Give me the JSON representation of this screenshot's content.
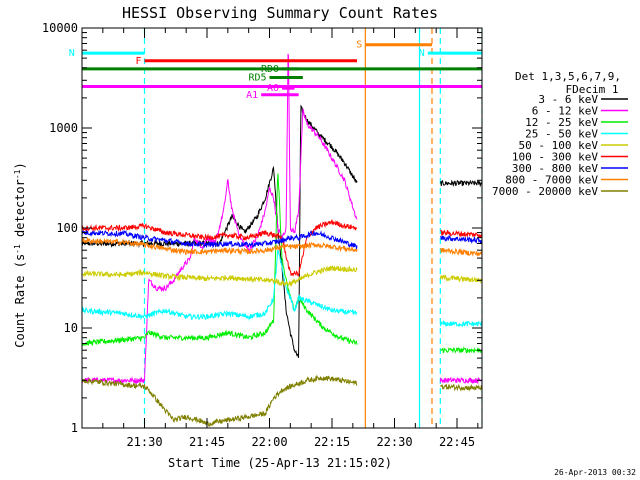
{
  "chart_data": {
    "type": "line",
    "title": "HESSI Observing Summary Count Rates",
    "xlabel": "Start Time (25-Apr-13 21:15:02)",
    "ylabel": "Count Rate (s⁻¹ detector⁻¹)",
    "ylabel_main": "Count Rate (s",
    "ylabel_mid": " detector",
    "ylabel_end": ")",
    "ylabel_sup": "-1",
    "yscale": "log",
    "ylim": [
      1,
      10000
    ],
    "xlim_minutes": [
      0,
      96
    ],
    "x_ticks": [
      {
        "label": "21:30",
        "m": 15
      },
      {
        "label": "21:45",
        "m": 30
      },
      {
        "label": "22:00",
        "m": 45
      },
      {
        "label": "22:15",
        "m": 60
      },
      {
        "label": "22:30",
        "m": 75
      },
      {
        "label": "22:45",
        "m": 90
      }
    ],
    "y_ticks": [
      {
        "label": "1",
        "v": 1
      },
      {
        "label": "10",
        "v": 10
      },
      {
        "label": "100",
        "v": 100
      },
      {
        "label": "1000",
        "v": 1000
      },
      {
        "label": "10000",
        "v": 10000
      }
    ],
    "legend": {
      "position": "right",
      "header": [
        "Det 1,3,5,6,7,9,",
        "FDecim 1"
      ],
      "entries": [
        {
          "label": "3 - 6 keV",
          "color": "#000000"
        },
        {
          "label": "6 - 12 keV",
          "color": "#ff00ff"
        },
        {
          "label": "12 - 25 keV",
          "color": "#00ee00"
        },
        {
          "label": "25 - 50 keV",
          "color": "#00ffff"
        },
        {
          "label": "50 - 100 keV",
          "color": "#cccc00"
        },
        {
          "label": "100 - 300 keV",
          "color": "#ff0000"
        },
        {
          "label": "300 - 800 keV",
          "color": "#0000ff"
        },
        {
          "label": "800 - 7000 keV",
          "color": "#ff8000"
        },
        {
          "label": "7000 - 20000 keV",
          "color": "#808000"
        }
      ]
    },
    "flags": [
      {
        "label": "N",
        "color": "#00ffff",
        "start_m": -1,
        "end_m": 15,
        "level": 5600
      },
      {
        "label": "N",
        "color": "#00ffff",
        "start_m": 83,
        "end_m": 96,
        "level": 5600
      },
      {
        "label": "S",
        "color": "#ff8000",
        "start_m": 68,
        "end_m": 84,
        "level": 6800
      },
      {
        "label": "F",
        "color": "#ff0000",
        "start_m": 15,
        "end_m": 66,
        "level": 4700
      },
      {
        "label": "",
        "color": "#008000",
        "start_m": 0,
        "end_m": 96,
        "level": 3900
      },
      {
        "label": "RD0",
        "color": "#008000",
        "start_m": 48,
        "end_m": 52,
        "level": 3900
      },
      {
        "label": "RD5",
        "color": "#008000",
        "start_m": 45,
        "end_m": 53,
        "level": 3200
      },
      {
        "label": "",
        "color": "#ff00ff",
        "start_m": 0,
        "end_m": 96,
        "level": 2600
      },
      {
        "label": "A1",
        "color": "#ff00ff",
        "start_m": 43,
        "end_m": 52,
        "level": 2150
      },
      {
        "label": "A0",
        "color": "#ff00ff",
        "start_m": 48,
        "end_m": 51,
        "level": 2500
      }
    ],
    "vlines": [
      {
        "m": 15,
        "color": "#00ffff",
        "style": "dashed"
      },
      {
        "m": 68,
        "color": "#ff8000",
        "style": "solid"
      },
      {
        "m": 81,
        "color": "#00ffff",
        "style": "solid"
      },
      {
        "m": 84,
        "color": "#ff8000",
        "style": "dashed"
      },
      {
        "m": 86,
        "color": "#00ffff",
        "style": "dashed"
      },
      {
        "m": 96,
        "color": "#00ffff",
        "style": "dashed"
      }
    ],
    "segments": [
      [
        0,
        66
      ],
      [
        86,
        96
      ]
    ],
    "series": [
      {
        "name": "3 - 6 keV",
        "color": "#000000",
        "points": [
          [
            33,
            70
          ],
          [
            36,
            130
          ],
          [
            39,
            90
          ],
          [
            42,
            130
          ],
          [
            44,
            200
          ],
          [
            46,
            400
          ],
          [
            47,
            100
          ],
          [
            48,
            40
          ],
          [
            49,
            15
          ],
          [
            50,
            9
          ],
          [
            51,
            6
          ],
          [
            52,
            5
          ],
          [
            52.5,
            1600
          ],
          [
            54,
            1200
          ],
          [
            57,
            850
          ],
          [
            60,
            650
          ],
          [
            63,
            450
          ],
          [
            66,
            280
          ]
        ]
      },
      {
        "name": "6 - 12 keV",
        "color": "#ff00ff",
        "points": [
          [
            0,
            3
          ],
          [
            15,
            3
          ],
          [
            16,
            30
          ],
          [
            18,
            25
          ],
          [
            20,
            25
          ],
          [
            22,
            30
          ],
          [
            24,
            40
          ],
          [
            26,
            50
          ],
          [
            27,
            80
          ],
          [
            28,
            70
          ],
          [
            29,
            65
          ],
          [
            30,
            80
          ],
          [
            32,
            70
          ],
          [
            34,
            150
          ],
          [
            35,
            300
          ],
          [
            36,
            150
          ],
          [
            38,
            80
          ],
          [
            40,
            60
          ],
          [
            42,
            80
          ],
          [
            44,
            150
          ],
          [
            45,
            250
          ],
          [
            46,
            200
          ],
          [
            47,
            100
          ],
          [
            48,
            80
          ],
          [
            49,
            100
          ],
          [
            49.5,
            9000
          ],
          [
            50,
            100
          ],
          [
            51,
            90
          ],
          [
            52,
            150
          ],
          [
            53,
            1500
          ],
          [
            54,
            1100
          ],
          [
            57,
            800
          ],
          [
            60,
            500
          ],
          [
            63,
            300
          ],
          [
            66,
            120
          ],
          [
            86,
            3
          ],
          [
            96,
            3
          ]
        ]
      },
      {
        "name": "12 - 25 keV",
        "color": "#00ee00",
        "points": [
          [
            0,
            7
          ],
          [
            15,
            8
          ],
          [
            16,
            9
          ],
          [
            20,
            8
          ],
          [
            25,
            8
          ],
          [
            30,
            8
          ],
          [
            35,
            9
          ],
          [
            40,
            8
          ],
          [
            44,
            9
          ],
          [
            46,
            12
          ],
          [
            47,
            400
          ],
          [
            48,
            50
          ],
          [
            49,
            30
          ],
          [
            50,
            20
          ],
          [
            51,
            15
          ],
          [
            52,
            20
          ],
          [
            54,
            15
          ],
          [
            58,
            10
          ],
          [
            62,
            8
          ],
          [
            66,
            7
          ],
          [
            86,
            6
          ],
          [
            96,
            6
          ]
        ]
      },
      {
        "name": "25 - 50 keV",
        "color": "#00ffff",
        "points": [
          [
            0,
            15
          ],
          [
            10,
            14
          ],
          [
            15,
            13
          ],
          [
            20,
            15
          ],
          [
            25,
            13
          ],
          [
            30,
            13
          ],
          [
            35,
            14
          ],
          [
            40,
            13
          ],
          [
            44,
            14
          ],
          [
            46,
            20
          ],
          [
            47,
            60
          ],
          [
            48,
            40
          ],
          [
            49,
            25
          ],
          [
            50,
            20
          ],
          [
            51,
            15
          ],
          [
            52,
            20
          ],
          [
            55,
            18
          ],
          [
            60,
            15
          ],
          [
            66,
            14
          ],
          [
            86,
            11
          ],
          [
            96,
            11
          ]
        ]
      },
      {
        "name": "50 - 100 keV",
        "color": "#cccc00",
        "points": [
          [
            0,
            35
          ],
          [
            10,
            34
          ],
          [
            15,
            36
          ],
          [
            20,
            33
          ],
          [
            25,
            32
          ],
          [
            30,
            31
          ],
          [
            35,
            32
          ],
          [
            40,
            31
          ],
          [
            44,
            30
          ],
          [
            46,
            30
          ],
          [
            48,
            28
          ],
          [
            50,
            28
          ],
          [
            52,
            30
          ],
          [
            55,
            35
          ],
          [
            60,
            40
          ],
          [
            66,
            38
          ],
          [
            86,
            32
          ],
          [
            96,
            30
          ]
        ]
      },
      {
        "name": "100 - 300 keV",
        "color": "#ff0000",
        "points": [
          [
            0,
            100
          ],
          [
            10,
            100
          ],
          [
            15,
            105
          ],
          [
            20,
            90
          ],
          [
            25,
            85
          ],
          [
            30,
            80
          ],
          [
            35,
            85
          ],
          [
            40,
            80
          ],
          [
            44,
            90
          ],
          [
            46,
            85
          ],
          [
            48,
            80
          ],
          [
            50,
            35
          ],
          [
            52,
            35
          ],
          [
            54,
            80
          ],
          [
            56,
            100
          ],
          [
            60,
            115
          ],
          [
            63,
            105
          ],
          [
            66,
            100
          ],
          [
            86,
            90
          ],
          [
            96,
            85
          ]
        ]
      },
      {
        "name": "300 - 800 keV",
        "color": "#0000ff",
        "points": [
          [
            0,
            90
          ],
          [
            10,
            88
          ],
          [
            15,
            80
          ],
          [
            20,
            75
          ],
          [
            25,
            70
          ],
          [
            30,
            68
          ],
          [
            35,
            70
          ],
          [
            40,
            68
          ],
          [
            44,
            70
          ],
          [
            46,
            72
          ],
          [
            48,
            75
          ],
          [
            50,
            80
          ],
          [
            52,
            80
          ],
          [
            56,
            90
          ],
          [
            60,
            80
          ],
          [
            66,
            65
          ],
          [
            86,
            80
          ],
          [
            96,
            75
          ]
        ]
      },
      {
        "name": "800 - 7000 keV",
        "color": "#ff8000",
        "points": [
          [
            0,
            75
          ],
          [
            10,
            72
          ],
          [
            15,
            68
          ],
          [
            20,
            62
          ],
          [
            25,
            58
          ],
          [
            30,
            58
          ],
          [
            35,
            60
          ],
          [
            40,
            58
          ],
          [
            44,
            60
          ],
          [
            46,
            62
          ],
          [
            48,
            65
          ],
          [
            50,
            65
          ],
          [
            52,
            65
          ],
          [
            56,
            68
          ],
          [
            60,
            65
          ],
          [
            66,
            60
          ],
          [
            86,
            60
          ],
          [
            96,
            55
          ]
        ]
      },
      {
        "name": "7000 - 20000 keV",
        "color": "#808000",
        "points": [
          [
            0,
            3
          ],
          [
            15,
            2.6
          ],
          [
            16,
            2.4
          ],
          [
            20,
            1.5
          ],
          [
            22,
            1.2
          ],
          [
            25,
            1.3
          ],
          [
            28,
            1.2
          ],
          [
            30,
            1.1
          ],
          [
            35,
            1.2
          ],
          [
            40,
            1.3
          ],
          [
            44,
            1.4
          ],
          [
            46,
            2
          ],
          [
            48,
            2.4
          ],
          [
            50,
            2.6
          ],
          [
            54,
            3
          ],
          [
            58,
            3.2
          ],
          [
            62,
            3
          ],
          [
            66,
            2.8
          ],
          [
            86,
            2.6
          ],
          [
            96,
            2.5
          ]
        ]
      }
    ],
    "grid": false
  },
  "footer": {
    "date": "26-Apr-2013 00:32"
  }
}
